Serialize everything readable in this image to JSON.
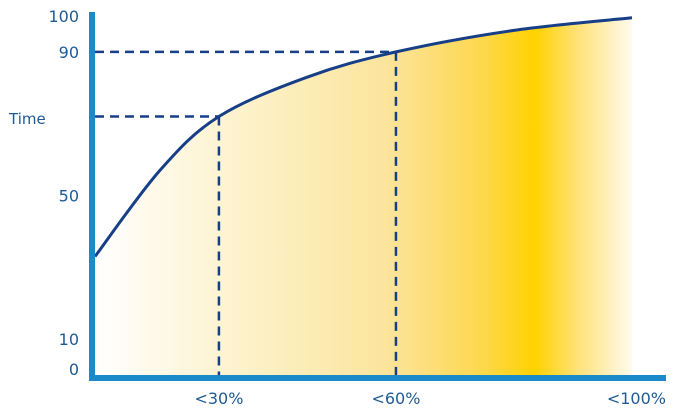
{
  "chart_data": {
    "type": "area",
    "ylabel": "Time",
    "xlabel": "",
    "x_ticks": [
      {
        "label": "<30%",
        "value": 30
      },
      {
        "label": "<60%",
        "value": 60
      },
      {
        "label": "<100%",
        "value": 100
      }
    ],
    "y_ticks": [
      {
        "label": "0",
        "value": 0
      },
      {
        "label": "10",
        "value": 10
      },
      {
        "label": "50",
        "value": 50
      },
      {
        "label": "90",
        "value": 90
      },
      {
        "label": "100",
        "value": 100
      }
    ],
    "xlim": [
      9,
      100
    ],
    "ylim": [
      0,
      100
    ],
    "grid": false,
    "series": [
      {
        "values": [
          {
            "x": 9,
            "y": 33
          },
          {
            "x": 20,
            "y": 57
          },
          {
            "x": 30,
            "y": 72
          },
          {
            "x": 45,
            "y": 83
          },
          {
            "x": 60,
            "y": 90
          },
          {
            "x": 80,
            "y": 96
          },
          {
            "x": 100,
            "y": 99.5
          }
        ]
      }
    ],
    "annotations": [
      {
        "type": "dashed-guide",
        "x": 30,
        "y": 72
      },
      {
        "type": "dashed-guide",
        "x": 60,
        "y": 90
      }
    ],
    "colors": {
      "axis": "#1a8ac9",
      "curve": "#173f87",
      "guide": "#173f87",
      "text": "#1f5a95",
      "fill_light": "#fffbee",
      "fill_peak": "#ffd200"
    }
  }
}
